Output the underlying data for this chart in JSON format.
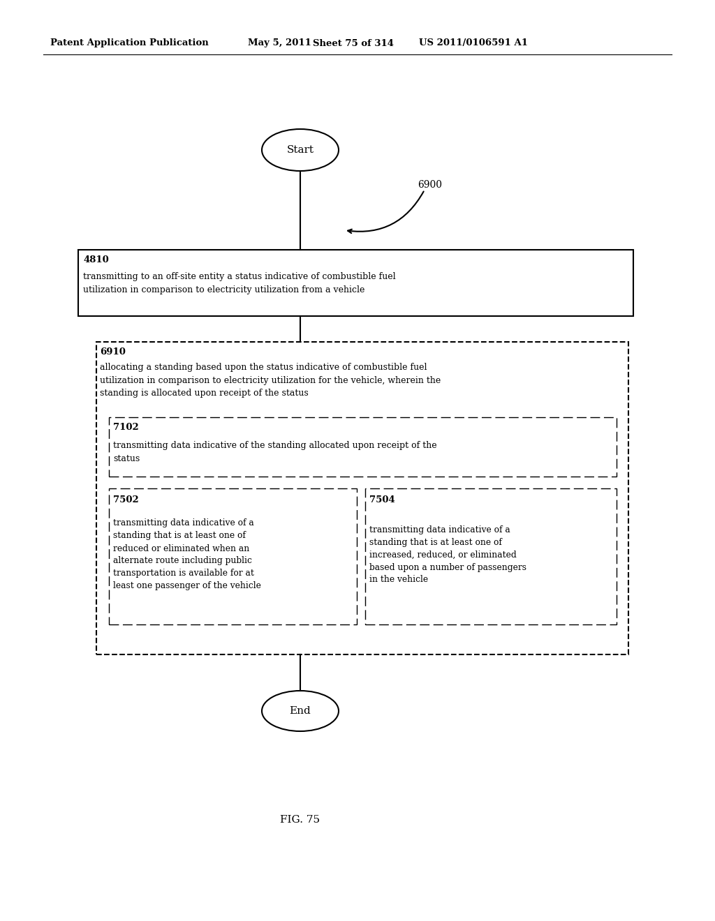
{
  "bg_color": "#ffffff",
  "header_text": "Patent Application Publication",
  "header_date": "May 5, 2011",
  "header_sheet": "Sheet 75 of 314",
  "header_patent": "US 2011/0106591 A1",
  "fig_label": "FIG. 75",
  "diagram_label": "6900",
  "start_label": "Start",
  "end_label": "End",
  "box4810_id": "4810",
  "box4810_text": "transmitting to an off-site entity a status indicative of combustible fuel\nutilization in comparison to electricity utilization from a vehicle",
  "box6910_id": "6910",
  "box6910_text": "allocating a standing based upon the status indicative of combustible fuel\nutilization in comparison to electricity utilization for the vehicle, wherein the\nstanding is allocated upon receipt of the status",
  "box7102_id": "7102",
  "box7102_text": "transmitting data indicative of the standing allocated upon receipt of the\nstatus",
  "box7502_id": "7502",
  "box7502_text": "transmitting data indicative of a\nstanding that is at least one of\nreduced or eliminated when an\nalternate route including public\ntransportation is available for at\nleast one passenger of the vehicle",
  "box7504_id": "7504",
  "box7504_text": "transmitting data indicative of a\nstanding that is at least one of\nincreased, reduced, or eliminated\nbased upon a number of passengers\nin the vehicle"
}
